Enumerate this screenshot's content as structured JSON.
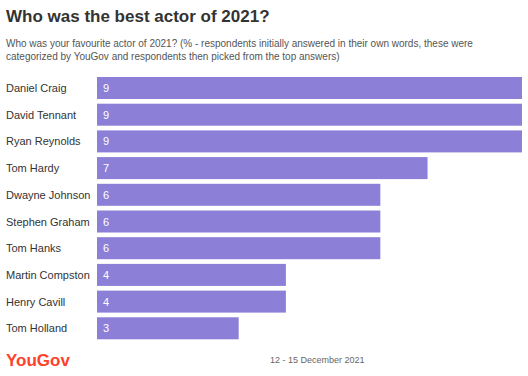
{
  "chart_data": {
    "type": "bar",
    "orientation": "horizontal",
    "title": "Who was the best actor of 2021?",
    "subtitle": "Who was your favourite actor of 2021? (% - respondents initially answered in their own words, these were categorized by YouGov and respondents then picked from the top answers)",
    "categories": [
      "Daniel Craig",
      "David Tennant",
      "Ryan Reynolds",
      "Tom Hardy",
      "Dwayne Johnson",
      "Stephen Graham",
      "Tom Hanks",
      "Martin Compston",
      "Henry Cavill",
      "Tom Holland"
    ],
    "values": [
      9,
      9,
      9,
      7,
      6,
      6,
      6,
      4,
      4,
      3
    ],
    "color": "#8b7fd8",
    "xlim": [
      0,
      9
    ],
    "data_labels": true,
    "tick_labels": "y",
    "grid": false,
    "annotations": [
      "YouGov",
      "12 - 15 December 2021"
    ]
  }
}
